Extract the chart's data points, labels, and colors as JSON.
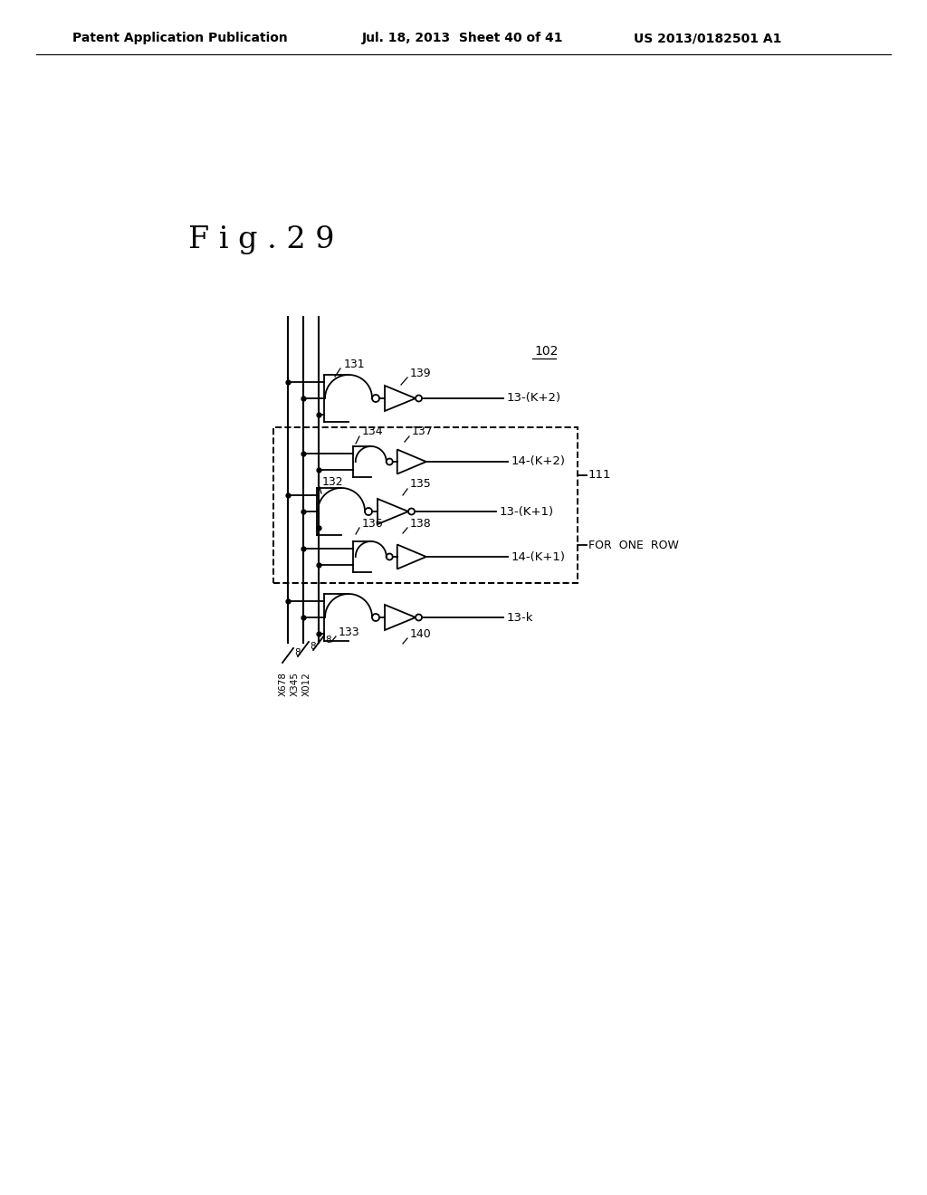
{
  "header_left": "Patent Application Publication",
  "header_mid": "Jul. 18, 2013  Sheet 40 of 41",
  "header_right": "US 2013/0182501 A1",
  "bg_color": "#ffffff",
  "line_color": "#000000",
  "text_color": "#000000",
  "fig_title": "F i g . 2 9"
}
